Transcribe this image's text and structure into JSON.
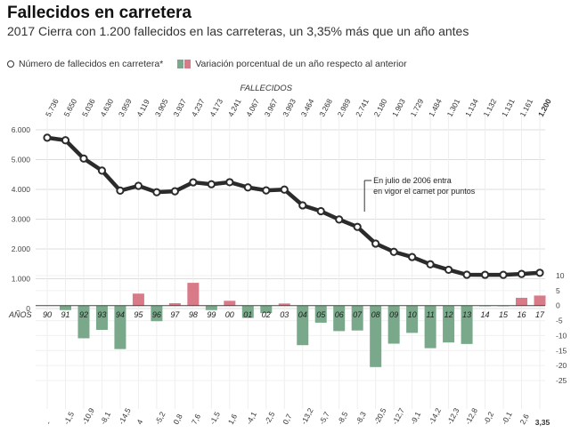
{
  "header": {
    "title": "Fallecidos en carretera",
    "subtitle": "2017 Cierra con 1.200 fallecidos en las carreteras, un 3,35% más que un año antes"
  },
  "legend": {
    "line_label": "Número de fallecidos en carretera*",
    "bar_label": "Variación porcentual de un año respecto al anterior"
  },
  "colors": {
    "line": "#2b2b2b",
    "positive": "#d97a88",
    "negative": "#79a98a",
    "grid": "#dddddd"
  },
  "chart_data": [
    {
      "type": "line",
      "top_label": "FALLECIDOS",
      "x": [
        "90",
        "91",
        "92",
        "93",
        "94",
        "95",
        "96",
        "97",
        "98",
        "99",
        "00",
        "01",
        "02",
        "03",
        "04",
        "05",
        "06",
        "07",
        "08",
        "09",
        "10",
        "11",
        "12",
        "13",
        "14",
        "15",
        "16",
        "17"
      ],
      "values": [
        5736,
        5650,
        5036,
        4630,
        3959,
        4119,
        3905,
        3937,
        4237,
        4173,
        4241,
        4067,
        3967,
        3993,
        3464,
        3268,
        2989,
        2741,
        2180,
        1903,
        1729,
        1484,
        1301,
        1134,
        1132,
        1131,
        1161,
        1200
      ],
      "value_labels": [
        "5.736",
        "5.650",
        "5.036",
        "4.630",
        "3.959",
        "4.119",
        "3.905",
        "3.937",
        "4.237",
        "4.173",
        "4.241",
        "4.067",
        "3.967",
        "3.993",
        "3.464",
        "3.268",
        "2.989",
        "2.741",
        "2.180",
        "1.903",
        "1.729",
        "1.484",
        "1.301",
        "1.134",
        "1.132",
        "1.131",
        "1.161",
        "1.200"
      ],
      "y_ticks": [
        "0",
        "1.000",
        "2.000",
        "3.000",
        "4.000",
        "5.000",
        "6.000"
      ],
      "ylim": [
        0,
        6000
      ],
      "annotation": "En julio de 2006 entra en vigor el carnet por puntos",
      "annotation_x": "07"
    },
    {
      "type": "bar",
      "axis_label": "AÑOS",
      "x": [
        "90",
        "91",
        "92",
        "93",
        "94",
        "95",
        "96",
        "97",
        "98",
        "99",
        "00",
        "01",
        "02",
        "03",
        "04",
        "05",
        "06",
        "07",
        "08",
        "09",
        "10",
        "11",
        "12",
        "13",
        "14",
        "15",
        "16",
        "17"
      ],
      "values": [
        null,
        -1.5,
        -10.9,
        -8.1,
        -14.5,
        4,
        -5.2,
        0.8,
        7.6,
        -1.5,
        1.6,
        -4.1,
        -2.5,
        0.7,
        -13.2,
        -5.7,
        -8.5,
        -8.3,
        -20.5,
        -12.7,
        -9.1,
        -14.2,
        -12.3,
        -12.8,
        -0.2,
        -0.1,
        2.6,
        3.35
      ],
      "value_labels": [
        "-",
        "-1,5",
        "-10,9",
        "-8,1",
        "-14,5",
        "4",
        "-5,2",
        "0,8",
        "7,6",
        "-1,5",
        "1,6",
        "-4,1",
        "-2,5",
        "0,7",
        "-13,2",
        "-5,7",
        "-8,5",
        "-8,3",
        "-20,5",
        "-12,7",
        "-9,1",
        "-14,2",
        "-12,3",
        "-12,8",
        "-0,2",
        "-0,1",
        "2,6",
        "3,35"
      ],
      "y_ticks": [
        "10",
        "5",
        "0",
        "-5",
        "-10",
        "-15",
        "-20",
        "-25"
      ],
      "ylim": [
        -25,
        10
      ]
    }
  ]
}
